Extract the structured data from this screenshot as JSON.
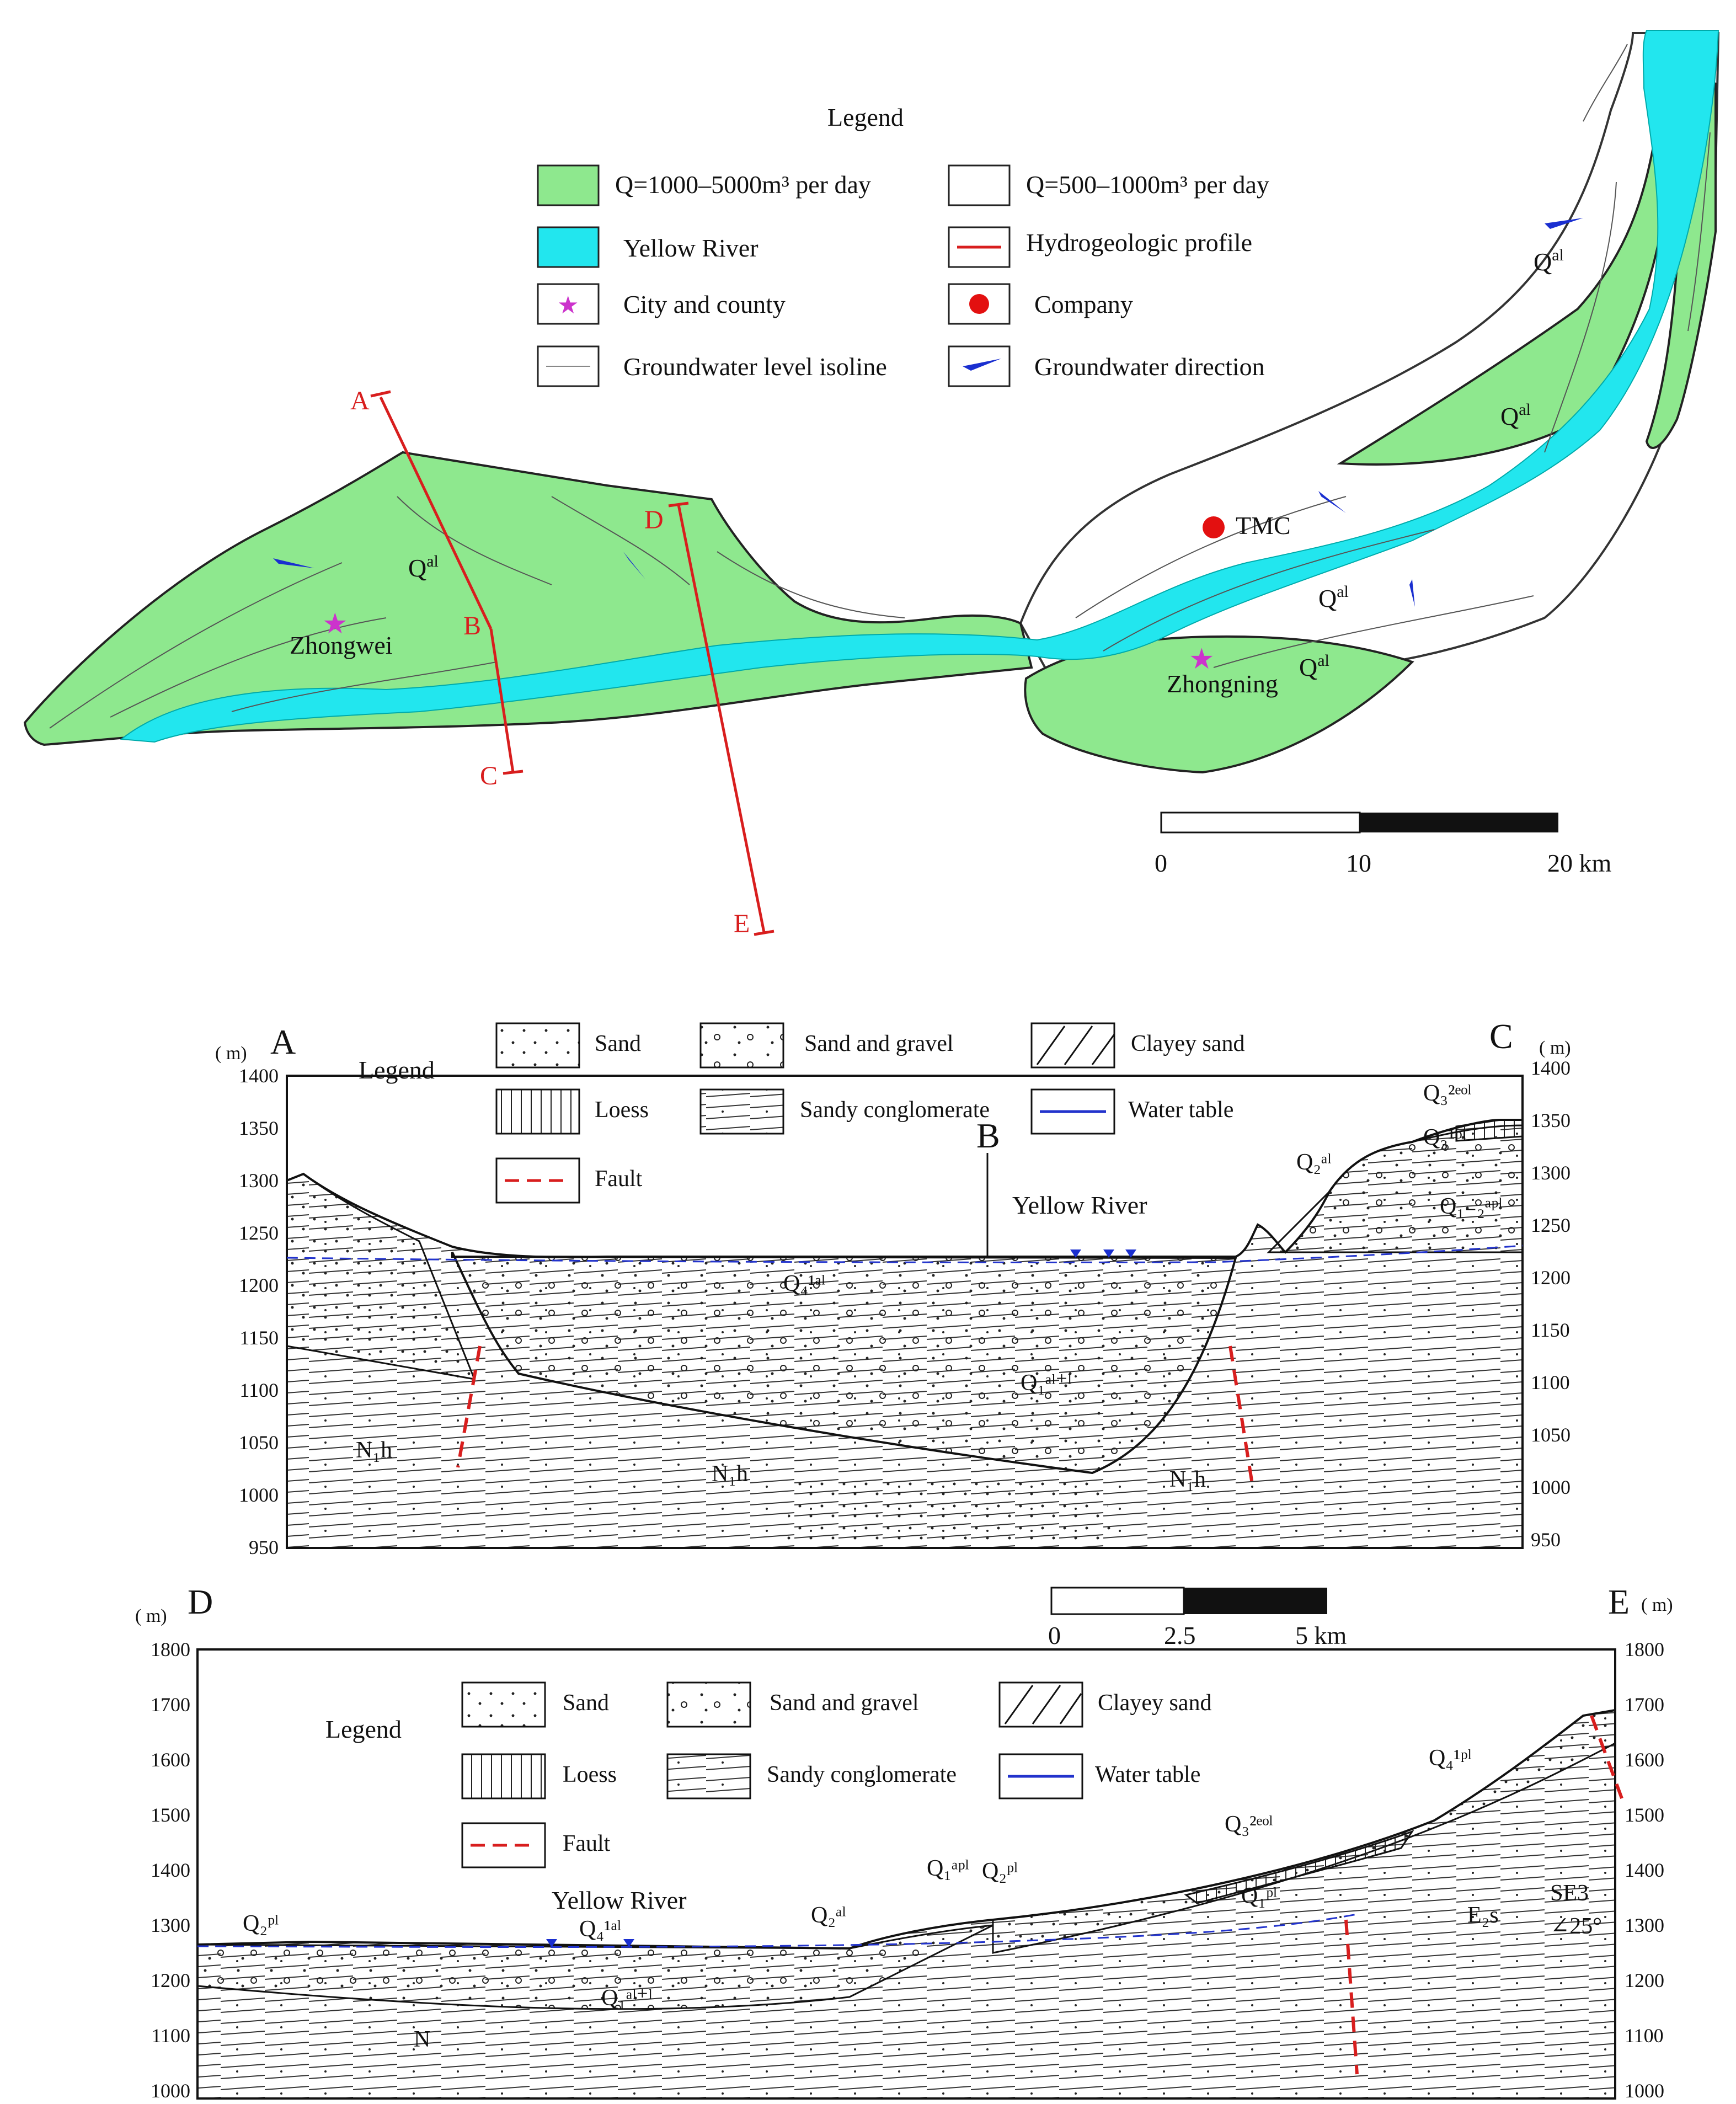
{
  "map": {
    "legend": {
      "title": "Legend",
      "items": [
        {
          "label": "Q=1000–5000m³  per  day",
          "swatch": "green"
        },
        {
          "label": "Q=500–1000m³  per  day",
          "swatch": "white"
        },
        {
          "label": "Yellow  River",
          "swatch": "cyan"
        },
        {
          "label": "Hydrogeologic  profile",
          "swatch": "red-line"
        },
        {
          "label": "City  and  county",
          "swatch": "star"
        },
        {
          "label": "Company",
          "swatch": "red-dot"
        },
        {
          "label": "Groundwater  level  isoline",
          "swatch": "thin-line"
        },
        {
          "label": "Groundwater  direction",
          "swatch": "blue-arrow"
        }
      ]
    },
    "places": {
      "zhongwei": "Zhongwei",
      "zhongning": "Zhongning",
      "tmc": "TMC"
    },
    "profile_points": {
      "a": "A",
      "b": "B",
      "c": "C",
      "d": "D",
      "e": "E"
    },
    "unit_label": "Q",
    "unit_sup": "al",
    "scale": {
      "ticks": [
        "0",
        "10",
        "20  km"
      ]
    },
    "colors": {
      "green": "#8ee88e",
      "cyan": "#22e6ee",
      "red": "#d81e1e",
      "blue": "#1a2fd0",
      "star": "#cc33cc"
    }
  },
  "section_ac": {
    "start": "A",
    "end": "C",
    "mid": "B",
    "unit": "( m)",
    "yticks": [
      "1400",
      "1350",
      "1300",
      "1250",
      "1200",
      "1150",
      "1100",
      "1050",
      "1000",
      "950"
    ],
    "river": "Yellow  River",
    "legend": {
      "title": "Legend",
      "items": [
        "Sand",
        "Sand  and  gravel",
        "Clayey  sand",
        "Loess",
        "Sandy  conglomerate",
        "Water  table",
        "Fault"
      ]
    },
    "units": [
      "N₁h",
      "N₁h",
      "N₁h",
      "Q₄¹ᵃˡ",
      "Q₁ᵃˡ⁺ˡ",
      "Q₂ᵃˡ",
      "Q₃²ᵉᵒˡ",
      "Q₃¹ᵖˡ",
      "Q₁₋₂ᵃᵖˡ"
    ]
  },
  "section_de": {
    "start": "D",
    "end": "E",
    "unit": "( m)",
    "yticks": [
      "1800",
      "1700",
      "1600",
      "1500",
      "1400",
      "1300",
      "1200",
      "1100",
      "1000"
    ],
    "river": "Yellow  River",
    "scale": {
      "ticks": [
        "0",
        "2.5",
        "5  km"
      ]
    },
    "legend": {
      "title": "Legend",
      "items": [
        "Sand",
        "Sand  and  gravel",
        "Clayey  sand",
        "Loess",
        "Sandy  conglomerate",
        "Water  table",
        "Fault"
      ]
    },
    "units": [
      "Q₂ᵖˡ",
      "Q₄¹ᵃˡ",
      "Q₁ᵃˡ⁺ˡ",
      "N",
      "Q₂ᵃˡ",
      "Q₁ᵃᵖˡ",
      "Q₂ᵖˡ",
      "Q₃²ᵉᵒˡ",
      "Q₁ᵖˡ",
      "Q₄¹ᵖˡ",
      "E₂s",
      "SE3",
      "∠25°"
    ]
  }
}
